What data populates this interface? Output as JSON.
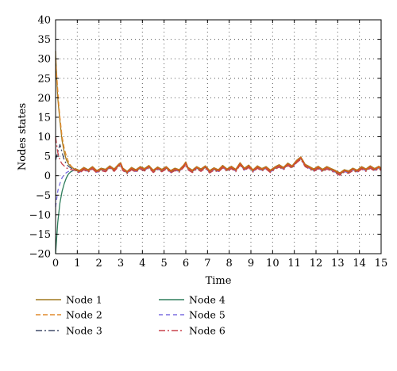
{
  "chart_data": {
    "type": "line",
    "xlabel": "Time",
    "ylabel": "Nodes states",
    "xlim": [
      0,
      15
    ],
    "ylim": [
      -20,
      40
    ],
    "xticks": [
      0,
      1,
      2,
      3,
      4,
      5,
      6,
      7,
      8,
      9,
      10,
      11,
      12,
      13,
      14,
      15
    ],
    "yticks": [
      -20,
      -15,
      -10,
      -5,
      0,
      5,
      10,
      15,
      20,
      25,
      30,
      35,
      40
    ],
    "xtick_labels": [
      "0",
      "1",
      "2",
      "3",
      "4",
      "5",
      "6",
      "7",
      "8",
      "9",
      "10",
      "11",
      "12",
      "13",
      "14",
      "15"
    ],
    "ytick_labels": [
      "−20",
      "−15",
      "−10",
      "−5",
      "0",
      "5",
      "10",
      "15",
      "20",
      "25",
      "30",
      "35",
      "40"
    ],
    "grid": "dotted",
    "legend_position": "below",
    "consensus_trajectory": {
      "x": [
        0.9,
        1.1,
        1.3,
        1.5,
        1.7,
        1.9,
        2.1,
        2.3,
        2.5,
        2.7,
        2.9,
        3.0,
        3.1,
        3.3,
        3.5,
        3.7,
        3.9,
        4.1,
        4.3,
        4.5,
        4.7,
        4.9,
        5.1,
        5.3,
        5.5,
        5.7,
        5.9,
        6.0,
        6.1,
        6.3,
        6.5,
        6.7,
        6.9,
        7.1,
        7.3,
        7.5,
        7.7,
        7.9,
        8.1,
        8.3,
        8.5,
        8.7,
        8.9,
        9.1,
        9.3,
        9.5,
        9.7,
        9.9,
        10.1,
        10.3,
        10.5,
        10.7,
        10.9,
        11.1,
        11.3,
        11.5,
        11.7,
        11.9,
        12.1,
        12.3,
        12.5,
        12.7,
        12.9,
        13.1,
        13.3,
        13.5,
        13.7,
        13.9,
        14.1,
        14.3,
        14.5,
        14.7,
        14.9,
        15.0
      ],
      "y": [
        1.5,
        1.0,
        1.8,
        1.2,
        2.0,
        1.0,
        1.6,
        1.3,
        2.2,
        1.4,
        2.6,
        3.0,
        1.6,
        0.8,
        1.8,
        1.2,
        2.0,
        1.5,
        2.3,
        1.1,
        1.9,
        1.3,
        2.0,
        1.0,
        1.6,
        1.2,
        2.4,
        3.2,
        1.8,
        1.1,
        2.0,
        1.4,
        2.2,
        1.0,
        1.7,
        1.2,
        2.3,
        1.4,
        2.1,
        1.3,
        3.0,
        1.6,
        2.4,
        1.2,
        2.2,
        1.5,
        2.0,
        1.1,
        1.9,
        2.5,
        1.8,
        2.9,
        2.2,
        3.6,
        4.5,
        2.6,
        2.0,
        1.4,
        2.1,
        1.3,
        2.0,
        1.5,
        1.0,
        0.4,
        1.2,
        0.9,
        1.6,
        1.1,
        2.0,
        1.4,
        2.2,
        1.5,
        2.1,
        1.6
      ]
    },
    "series": [
      {
        "name": "Node 1",
        "color": "#a0781e",
        "dash": "solid",
        "initial": 32,
        "x": [
          0,
          0.05,
          0.1,
          0.15,
          0.2,
          0.3,
          0.4,
          0.5,
          0.6,
          0.7,
          0.8,
          0.9
        ],
        "y": [
          32,
          25,
          20,
          17,
          14,
          9,
          6,
          4,
          3,
          2.4,
          2,
          1.5
        ]
      },
      {
        "name": "Node 2",
        "color": "#e08a2c",
        "dash": "6,3",
        "initial": 30,
        "x": [
          0,
          0.05,
          0.1,
          0.15,
          0.2,
          0.3,
          0.4,
          0.5,
          0.6,
          0.7,
          0.8,
          0.9
        ],
        "y": [
          30,
          26,
          22,
          18,
          15,
          10,
          7,
          5,
          3.5,
          2.6,
          2,
          1.5
        ]
      },
      {
        "name": "Node 3",
        "color": "#404b6a",
        "dash": "8,3,2,3",
        "initial": 4,
        "x": [
          0,
          0.05,
          0.1,
          0.2,
          0.3,
          0.4,
          0.5,
          0.6,
          0.7,
          0.8,
          0.9
        ],
        "y": [
          4,
          5,
          6,
          8,
          6,
          4,
          3,
          2.4,
          2,
          1.8,
          1.5
        ]
      },
      {
        "name": "Node 4",
        "color": "#2e7d5b",
        "dash": "solid",
        "initial": -20,
        "x": [
          0,
          0.05,
          0.1,
          0.2,
          0.3,
          0.4,
          0.5,
          0.6,
          0.7,
          0.8,
          0.9
        ],
        "y": [
          -20,
          -16,
          -12,
          -7,
          -4,
          -2,
          -0.5,
          0.5,
          1,
          1.3,
          1.5
        ]
      },
      {
        "name": "Node 5",
        "color": "#7b6fe0",
        "dash": "5,4",
        "initial": -8,
        "x": [
          0,
          0.05,
          0.1,
          0.2,
          0.3,
          0.4,
          0.5,
          0.6,
          0.7,
          0.8,
          0.9
        ],
        "y": [
          -8,
          -6,
          -4,
          -2,
          -0.5,
          0.3,
          0.8,
          1.1,
          1.3,
          1.4,
          1.5
        ]
      },
      {
        "name": "Node 6",
        "color": "#c8424c",
        "dash": "8,3,2,3",
        "initial": 10,
        "x": [
          0,
          0.05,
          0.1,
          0.2,
          0.3,
          0.4,
          0.5,
          0.6,
          0.7,
          0.8,
          0.9
        ],
        "y": [
          10,
          8,
          6,
          4,
          3,
          2.5,
          2,
          1.8,
          1.6,
          1.5,
          1.5
        ]
      }
    ]
  }
}
